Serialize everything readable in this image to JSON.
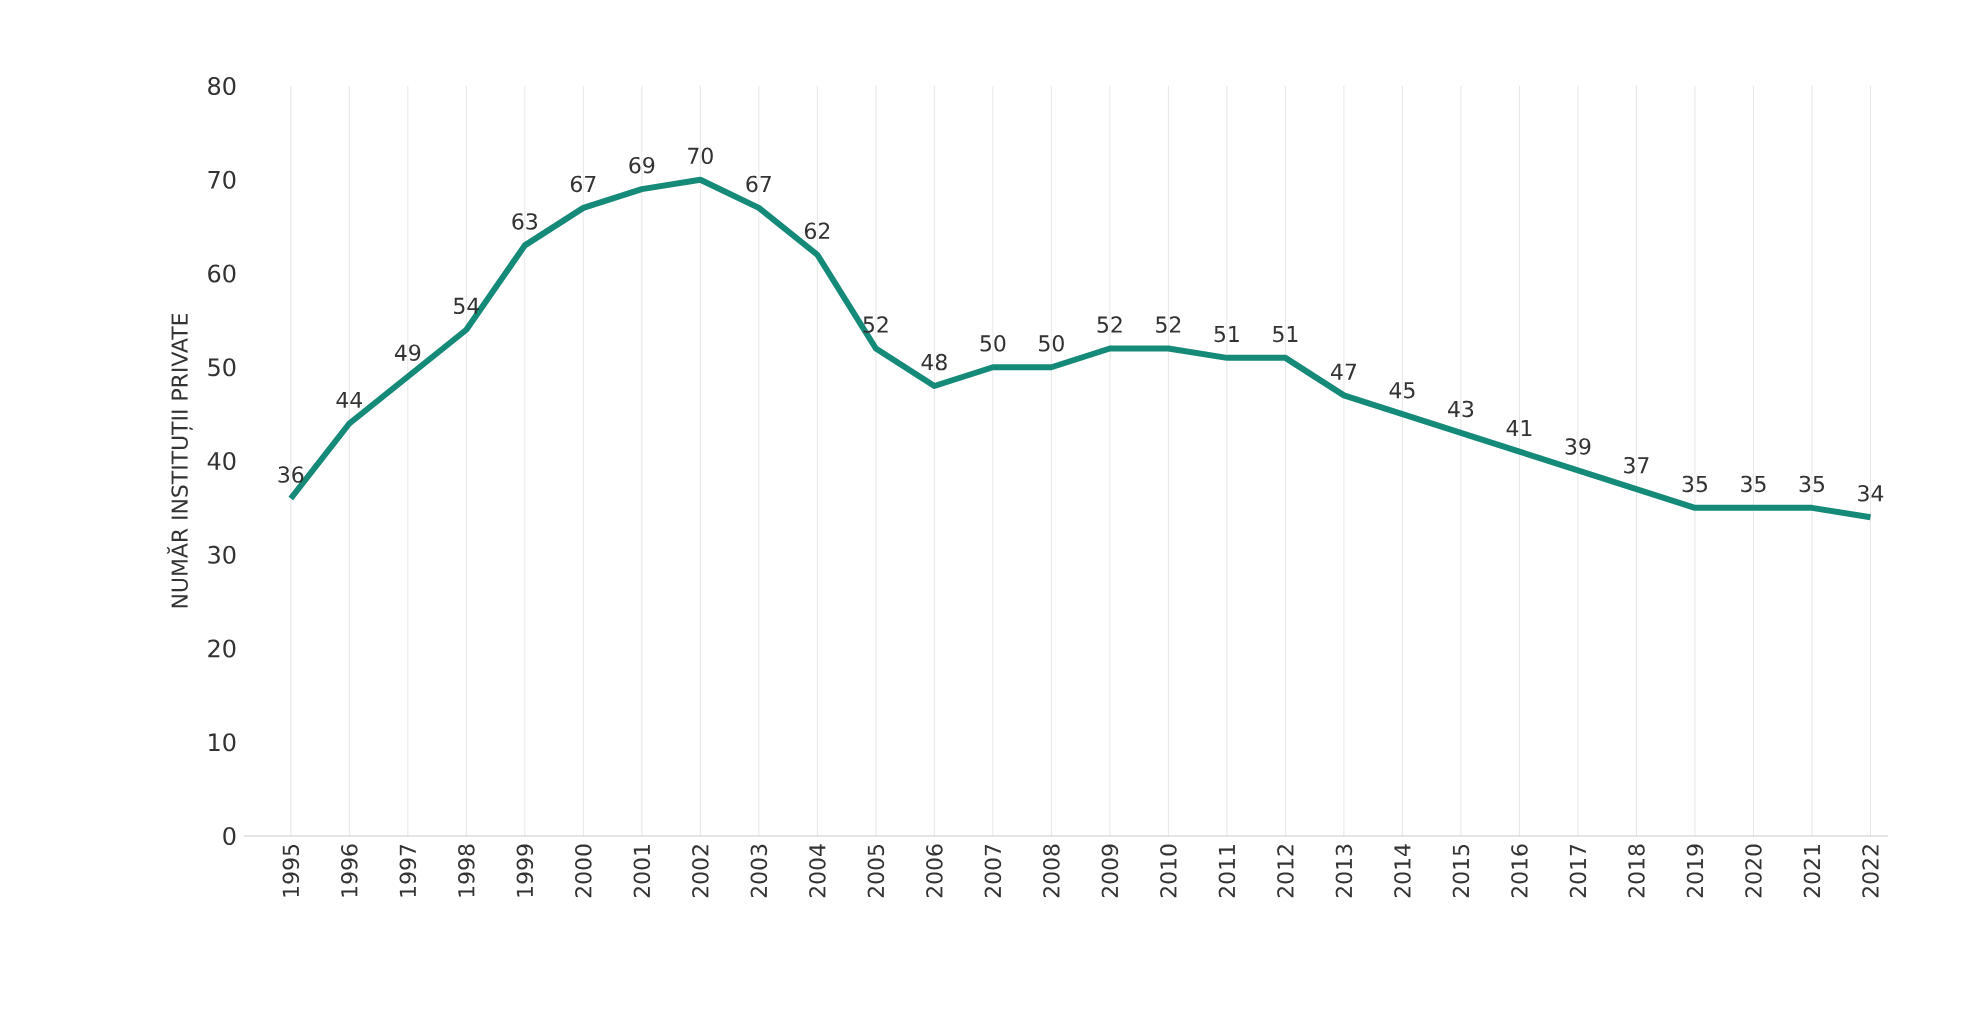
{
  "chart_data": {
    "type": "line",
    "ylabel": "NUMĂR INSTITUȚII PRIVATE",
    "categories": [
      "1995",
      "1996",
      "1997",
      "1998",
      "1999",
      "2000",
      "2001",
      "2002",
      "2003",
      "2004",
      "2005",
      "2006",
      "2007",
      "2008",
      "2009",
      "2010",
      "2011",
      "2012",
      "2013",
      "2014",
      "2015",
      "2016",
      "2017",
      "2018",
      "2019",
      "2020",
      "2021",
      "2022"
    ],
    "values": [
      36,
      44,
      49,
      54,
      63,
      67,
      69,
      70,
      67,
      62,
      52,
      48,
      50,
      50,
      52,
      52,
      51,
      51,
      47,
      45,
      43,
      41,
      39,
      37,
      35,
      35,
      35,
      34
    ],
    "color": "#168a78",
    "ylim": [
      0,
      80
    ],
    "yticks": [
      0,
      10,
      20,
      30,
      40,
      50,
      60,
      70,
      80
    ],
    "grid": "x",
    "data_labels": true,
    "marker": "none",
    "line_style": "solid"
  }
}
